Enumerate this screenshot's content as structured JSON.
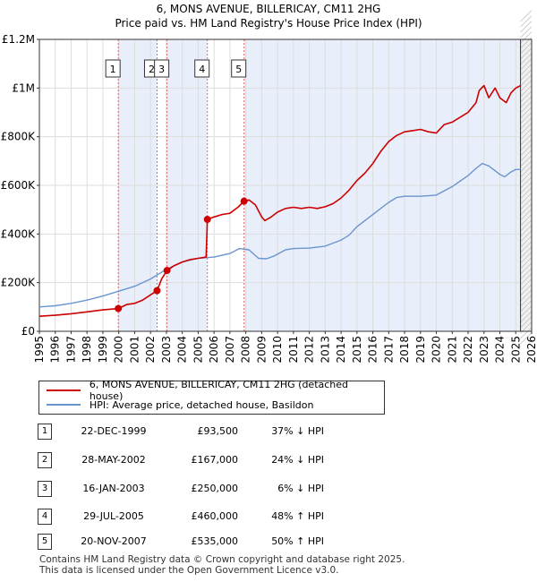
{
  "title_line1": "6, MONS AVENUE, BILLERICAY, CM11 2HG",
  "title_line2": "Price paid vs. HM Land Registry's House Price Index (HPI)",
  "colors": {
    "property": "#cc0000",
    "hpi": "#6a95cf",
    "shade": "#e8eefa",
    "vline": "#e06666",
    "grid": "#dddddd"
  },
  "chart_data": {
    "type": "line",
    "title": "Price paid vs. HM Land Registry's House Price Index (HPI)",
    "xlim": [
      1995,
      2026
    ],
    "ylim": [
      0,
      1200000
    ],
    "y_ticks": [
      0,
      200000,
      400000,
      600000,
      800000,
      1000000,
      1200000
    ],
    "y_tick_labels": [
      "£0",
      "£200K",
      "£400K",
      "£600K",
      "£800K",
      "£1M",
      "£1.2M"
    ],
    "x_ticks": [
      1995,
      1996,
      1997,
      1998,
      1999,
      2000,
      2001,
      2002,
      2003,
      2004,
      2005,
      2006,
      2007,
      2008,
      2009,
      2010,
      2011,
      2012,
      2013,
      2014,
      2015,
      2016,
      2017,
      2018,
      2019,
      2020,
      2021,
      2022,
      2023,
      2024,
      2025,
      2026
    ],
    "x_tick_labels": [
      "1995",
      "1996",
      "1997",
      "1998",
      "1999",
      "2000",
      "2001",
      "2002",
      "2003",
      "2004",
      "2005",
      "2006",
      "2007",
      "2008",
      "2009",
      "2010",
      "2011",
      "2012",
      "2013",
      "2014",
      "2015",
      "2016",
      "2017",
      "2018",
      "2019",
      "2020",
      "2021",
      "2022",
      "2023",
      "2024",
      "2025",
      "2026"
    ],
    "shaded_periods": [
      [
        1999.97,
        2002.41
      ],
      [
        2003.04,
        2005.58
      ],
      [
        2007.89,
        2025.3
      ]
    ],
    "projection_start": 2025.3,
    "series": [
      {
        "name": "6, MONS AVENUE, BILLERICAY, CM11 2HG (detached house)",
        "x": [
          1995,
          1996,
          1997,
          1998,
          1999,
          1999.97,
          2000.5,
          2001,
          2001.5,
          2002.0,
          2002.41,
          2002.7,
          2003.04,
          2003.5,
          2004,
          2004.5,
          2005,
          2005.5,
          2005.58,
          2006,
          2006.5,
          2007,
          2007.5,
          2007.89,
          2008.2,
          2008.6,
          2009,
          2009.2,
          2009.6,
          2010,
          2010.5,
          2011,
          2011.5,
          2012,
          2012.5,
          2013,
          2013.5,
          2014,
          2014.5,
          2015,
          2015.5,
          2016,
          2016.5,
          2017,
          2017.5,
          2018,
          2018.5,
          2019,
          2019.5,
          2020,
          2020.5,
          2021,
          2021.5,
          2022,
          2022.5,
          2022.7,
          2023,
          2023.3,
          2023.7,
          2024,
          2024.4,
          2024.7,
          2025,
          2025.3
        ],
        "y": [
          62000,
          66000,
          72000,
          80000,
          88000,
          93500,
          110000,
          115000,
          128000,
          150000,
          167000,
          215000,
          250000,
          270000,
          285000,
          295000,
          300000,
          305000,
          460000,
          470000,
          480000,
          485000,
          510000,
          535000,
          540000,
          520000,
          470000,
          455000,
          470000,
          490000,
          505000,
          510000,
          505000,
          510000,
          505000,
          512000,
          525000,
          548000,
          580000,
          620000,
          650000,
          690000,
          740000,
          780000,
          805000,
          820000,
          825000,
          830000,
          820000,
          815000,
          850000,
          860000,
          880000,
          900000,
          940000,
          990000,
          1010000,
          960000,
          1000000,
          960000,
          940000,
          980000,
          1000000,
          1010000
        ]
      },
      {
        "name": "HPI: Average price, detached house, Basildon",
        "x": [
          1995,
          1996,
          1997,
          1998,
          1999,
          2000,
          2001,
          2002,
          2003,
          2004,
          2005,
          2006,
          2007,
          2007.6,
          2008.2,
          2008.8,
          2009.3,
          2009.8,
          2010.5,
          2011,
          2012,
          2013,
          2014,
          2014.5,
          2015,
          2016,
          2017,
          2017.5,
          2018,
          2019,
          2020,
          2021,
          2022,
          2022.5,
          2022.9,
          2023.3,
          2023.7,
          2024,
          2024.3,
          2024.7,
          2025,
          2025.3
        ],
        "y": [
          100000,
          105000,
          115000,
          128000,
          145000,
          165000,
          185000,
          215000,
          255000,
          285000,
          300000,
          305000,
          320000,
          340000,
          335000,
          300000,
          298000,
          310000,
          335000,
          340000,
          342000,
          350000,
          375000,
          395000,
          430000,
          480000,
          530000,
          550000,
          555000,
          555000,
          560000,
          595000,
          640000,
          670000,
          690000,
          680000,
          660000,
          645000,
          635000,
          655000,
          665000,
          665000
        ]
      }
    ],
    "sales": [
      {
        "n": "1",
        "x": 1999.97,
        "y": 93500
      },
      {
        "n": "2",
        "x": 2002.41,
        "y": 167000
      },
      {
        "n": "3",
        "x": 2003.04,
        "y": 250000
      },
      {
        "n": "4",
        "x": 2005.58,
        "y": 460000
      },
      {
        "n": "5",
        "x": 2007.89,
        "y": 535000
      }
    ]
  },
  "legend": {
    "property_label": "6, MONS AVENUE, BILLERICAY, CM11 2HG (detached house)",
    "hpi_label": "HPI: Average price, detached house, Basildon"
  },
  "sales_table": [
    {
      "num": "1",
      "date": "22-DEC-1999",
      "price": "£93,500",
      "hpi": "37% ↓ HPI"
    },
    {
      "num": "2",
      "date": "28-MAY-2002",
      "price": "£167,000",
      "hpi": "24% ↓ HPI"
    },
    {
      "num": "3",
      "date": "16-JAN-2003",
      "price": "£250,000",
      "hpi": "6% ↓ HPI"
    },
    {
      "num": "4",
      "date": "29-JUL-2005",
      "price": "£460,000",
      "hpi": "48% ↑ HPI"
    },
    {
      "num": "5",
      "date": "20-NOV-2007",
      "price": "£535,000",
      "hpi": "50% ↑ HPI"
    }
  ],
  "footer": {
    "line1": "Contains HM Land Registry data © Crown copyright and database right 2025.",
    "line2": "This data is licensed under the Open Government Licence v3.0."
  }
}
